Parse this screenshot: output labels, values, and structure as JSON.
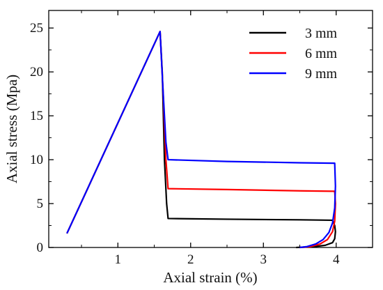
{
  "chart_data": {
    "type": "line",
    "title": "",
    "xlabel": "Axial strain (%)",
    "ylabel": "Axial stress (Mpa)",
    "xlim": [
      0.05,
      4.5
    ],
    "ylim": [
      0,
      27
    ],
    "xticks": [
      1,
      2,
      3,
      4
    ],
    "yticks": [
      0,
      5,
      10,
      15,
      20,
      25
    ],
    "grid": false,
    "legend_position": "top-right",
    "series": [
      {
        "name": "3 mm",
        "color": "#000000",
        "points": [
          [
            0.3,
            1.6
          ],
          [
            1.58,
            24.6
          ],
          [
            1.61,
            20.0
          ],
          [
            1.64,
            10.0
          ],
          [
            1.67,
            5.0
          ],
          [
            1.69,
            3.3
          ],
          [
            2.5,
            3.22
          ],
          [
            3.5,
            3.15
          ],
          [
            3.95,
            3.1
          ],
          [
            3.98,
            2.5
          ],
          [
            3.99,
            1.8
          ],
          [
            3.98,
            1.0
          ],
          [
            3.95,
            0.55
          ],
          [
            3.85,
            0.25
          ],
          [
            3.7,
            0.1
          ],
          [
            3.45,
            0.0
          ]
        ]
      },
      {
        "name": "6 mm",
        "color": "#ff0000",
        "points": [
          [
            0.3,
            1.6
          ],
          [
            1.58,
            24.6
          ],
          [
            1.62,
            18.0
          ],
          [
            1.66,
            10.0
          ],
          [
            1.69,
            6.7
          ],
          [
            2.5,
            6.6
          ],
          [
            3.5,
            6.45
          ],
          [
            3.98,
            6.4
          ],
          [
            3.99,
            5.0
          ],
          [
            3.98,
            3.0
          ],
          [
            3.95,
            1.8
          ],
          [
            3.88,
            0.9
          ],
          [
            3.78,
            0.4
          ],
          [
            3.65,
            0.1
          ],
          [
            3.5,
            0.0
          ]
        ]
      },
      {
        "name": "9 mm",
        "color": "#0000ff",
        "points": [
          [
            0.3,
            1.6
          ],
          [
            1.58,
            24.6
          ],
          [
            1.62,
            18.0
          ],
          [
            1.66,
            12.0
          ],
          [
            1.69,
            10.0
          ],
          [
            2.5,
            9.8
          ],
          [
            3.5,
            9.65
          ],
          [
            3.98,
            9.6
          ],
          [
            3.99,
            7.0
          ],
          [
            3.98,
            4.5
          ],
          [
            3.95,
            2.8
          ],
          [
            3.9,
            1.7
          ],
          [
            3.82,
            0.9
          ],
          [
            3.72,
            0.4
          ],
          [
            3.6,
            0.1
          ],
          [
            3.5,
            0.0
          ]
        ]
      }
    ]
  }
}
